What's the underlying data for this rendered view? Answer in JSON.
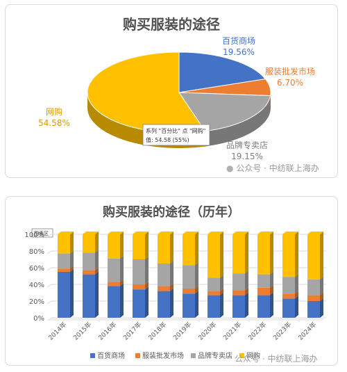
{
  "watermark": "公众号 · 中纺联上海办",
  "colors": {
    "department_store": "#4472c4",
    "wholesale": "#ed7d31",
    "brand_store": "#a5a5a5",
    "online": "#ffc000"
  },
  "chart_data": [
    {
      "type": "pie",
      "title": "购买服装的途径",
      "slices": [
        {
          "label": "百货商场",
          "value": 19.56,
          "display": "19.56%",
          "color": "#4472c4"
        },
        {
          "label": "服装批发市场",
          "value": 6.7,
          "display": "6.70%",
          "color": "#ed7d31"
        },
        {
          "label": "品牌专卖店",
          "value": 19.15,
          "display": "19.15%",
          "color": "#a5a5a5"
        },
        {
          "label": "网购",
          "value": 54.58,
          "display": "54.58%",
          "color": "#ffc000"
        }
      ],
      "tooltip": {
        "line1": "系列 \"百分比\" 点 \"网购\"",
        "line2": "值: 54.58 (55%)"
      }
    },
    {
      "type": "bar",
      "stacked": "percent",
      "title": "购买服装的途径（历年）",
      "chart_area_tag": "图表区",
      "categories": [
        "2014年",
        "2015年",
        "2016年",
        "2017年",
        "2018年",
        "2019年",
        "2020年",
        "2021年",
        "2022年",
        "2023年",
        "2024年"
      ],
      "series": [
        {
          "name": "百货商场",
          "color": "#4472c4",
          "values": [
            55,
            52,
            38,
            34,
            32,
            29,
            27,
            27,
            27,
            23,
            20
          ]
        },
        {
          "name": "服装批发市场",
          "color": "#ed7d31",
          "values": [
            4,
            5,
            5,
            6,
            6,
            6,
            5,
            6,
            9,
            6,
            7
          ]
        },
        {
          "name": "品牌专卖店",
          "color": "#a5a5a5",
          "values": [
            18,
            21,
            28,
            30,
            27,
            28,
            16,
            20,
            16,
            20,
            19
          ]
        },
        {
          "name": "网购",
          "color": "#ffc000",
          "values": [
            23,
            22,
            29,
            30,
            35,
            37,
            52,
            47,
            48,
            51,
            54
          ]
        }
      ],
      "yticks": [
        "0%",
        "20%",
        "40%",
        "60%",
        "80%",
        "100%"
      ],
      "ylim": [
        0,
        100
      ],
      "legend": "bottom"
    }
  ]
}
